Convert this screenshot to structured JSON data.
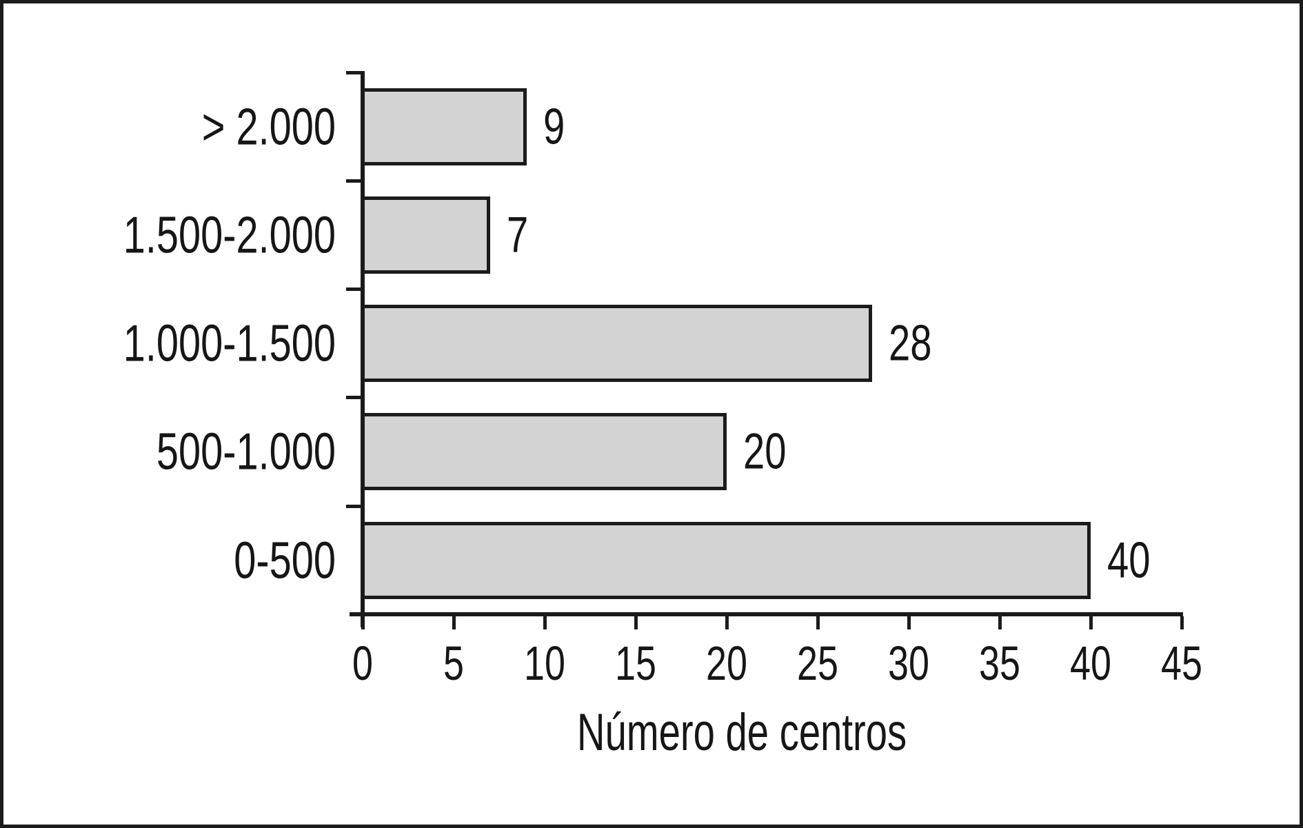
{
  "figure": {
    "background": "#ffffff",
    "border_color": "#1b1b1b"
  },
  "chart_data": {
    "type": "bar",
    "orientation": "horizontal",
    "title": "",
    "categories": [
      "> 2.000",
      "1.500-2.000",
      "1.000-1.500",
      "500-1.000",
      "0-500"
    ],
    "values": [
      9,
      7,
      28,
      20,
      40
    ],
    "bar_data_labels": [
      "9",
      "7",
      "28",
      "20",
      "40"
    ],
    "xlabel": "Número de centros",
    "ylabel": "",
    "xticks": [
      0,
      5,
      10,
      15,
      20,
      25,
      30,
      35,
      40,
      45
    ],
    "xtick_labels": [
      "0",
      "5",
      "10",
      "15",
      "20",
      "25",
      "30",
      "35",
      "40",
      "45"
    ],
    "xlim": [
      0,
      45
    ],
    "grid": false,
    "legend": null,
    "bar_fill_color": "#d3d3d3",
    "axis_color": "#1b1b1b"
  }
}
